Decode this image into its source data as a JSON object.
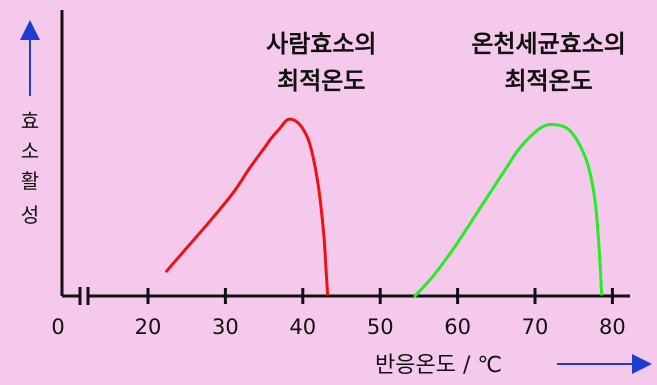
{
  "chart_data": {
    "type": "line",
    "xlabel": "반응온도 / ℃",
    "ylabel": "효소활성",
    "xlim": [
      0,
      85
    ],
    "x_ticks": [
      "0",
      "20",
      "30",
      "40",
      "50",
      "60",
      "70",
      "80"
    ],
    "axis_break": true,
    "grid": false,
    "legend": "none",
    "series": [
      {
        "color": "#ee1111",
        "annotation": [
          "사람효소의",
          "최적온도"
        ],
        "x": [
          22.4,
          25,
          28,
          31,
          33,
          35,
          36,
          37,
          38,
          39,
          40,
          41,
          42,
          42.7,
          43,
          43.2
        ],
        "y": [
          0.14,
          0.27,
          0.42,
          0.58,
          0.71,
          0.83,
          0.89,
          0.94,
          0.99,
          0.985,
          0.94,
          0.84,
          0.62,
          0.35,
          0.15,
          0.01
        ]
      },
      {
        "color": "#22ee22",
        "annotation": [
          "온천세균효소의",
          "최적온도"
        ],
        "x": [
          54.5,
          57,
          60,
          63,
          66,
          68,
          70,
          71.5,
          73,
          74.5,
          76,
          77,
          77.8,
          78.3,
          78.6
        ],
        "y": [
          0.0,
          0.12,
          0.3,
          0.5,
          0.7,
          0.83,
          0.92,
          0.96,
          0.96,
          0.93,
          0.83,
          0.71,
          0.52,
          0.26,
          0.01
        ]
      }
    ]
  }
}
